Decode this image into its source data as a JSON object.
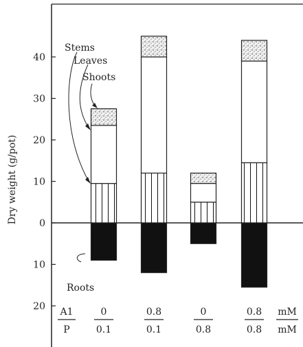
{
  "chart_data": {
    "type": "bar",
    "ylabel": "Dry weight  (g/pot)",
    "ylim": [
      -20,
      47
    ],
    "yticks": [
      {
        "value": 40,
        "label": "40"
      },
      {
        "value": 30,
        "label": "30"
      },
      {
        "value": 20,
        "label": "20"
      },
      {
        "value": 10,
        "label": "10"
      },
      {
        "value": 0,
        "label": "0"
      },
      {
        "value": -10,
        "label": "10"
      },
      {
        "value": -20,
        "label": "20"
      }
    ],
    "row_labels": {
      "al": "A1",
      "p": "P",
      "unit_top": "mM",
      "unit_bottom": "mM"
    },
    "categories": [
      {
        "al": "0",
        "p": "0.1"
      },
      {
        "al": "0.8",
        "p": "0.1"
      },
      {
        "al": "0",
        "p": "0.8"
      },
      {
        "al": "0.8",
        "p": "0.8"
      }
    ],
    "series": [
      {
        "name": "Stems",
        "pattern": "vertical-hatch",
        "values": [
          9.5,
          12,
          5,
          14.5
        ]
      },
      {
        "name": "Leaves",
        "pattern": "blank",
        "values": [
          14,
          28,
          4.5,
          24.5
        ]
      },
      {
        "name": "Shoots",
        "pattern": "stipple",
        "values": [
          4,
          5,
          2.5,
          5
        ]
      },
      {
        "name": "Roots",
        "pattern": "solid-black",
        "values": [
          9,
          12,
          5,
          15.5
        ],
        "direction": "down"
      }
    ],
    "annotations": [
      "Stems",
      "Leaves",
      "Shoots",
      "Roots"
    ]
  }
}
